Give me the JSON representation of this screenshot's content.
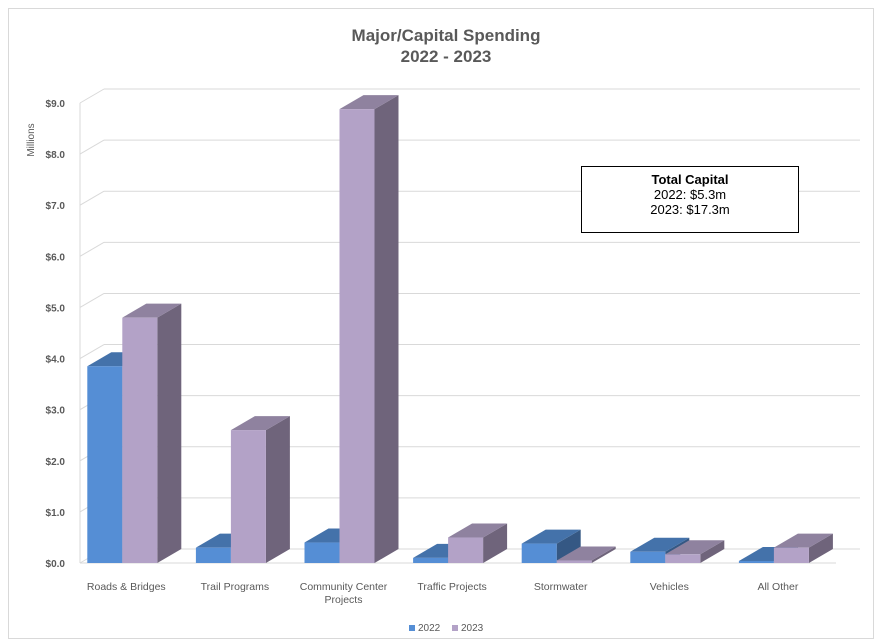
{
  "chart_data": {
    "type": "bar",
    "title": "Major/Capital Spending",
    "subtitle": "2022 - 2023",
    "ylabel": "Millions",
    "xlabel": "",
    "ylim": [
      0,
      9
    ],
    "yticks": [
      "$0.0",
      "$1.0",
      "$2.0",
      "$3.0",
      "$4.0",
      "$5.0",
      "$6.0",
      "$7.0",
      "$8.0",
      "$9.0"
    ],
    "grid": true,
    "legend_position": "bottom",
    "categories": [
      [
        "Roads & Bridges"
      ],
      [
        "Trail Programs"
      ],
      [
        "Community Center",
        "Projects"
      ],
      [
        "Traffic Projects"
      ],
      [
        "Stormwater"
      ],
      [
        "Vehicles"
      ],
      [
        "All Other"
      ]
    ],
    "series": [
      {
        "name": "2022",
        "color": "#558ed5",
        "values": [
          3.85,
          0.3,
          0.4,
          0.1,
          0.38,
          0.22,
          0.04
        ]
      },
      {
        "name": "2023",
        "color": "#b3a2c7",
        "values": [
          4.8,
          2.6,
          8.88,
          0.5,
          0.05,
          0.17,
          0.3
        ]
      }
    ],
    "annotation": {
      "heading": "Total Capital",
      "lines": [
        "2022: $5.3m",
        "2023: $17.3m"
      ]
    }
  }
}
